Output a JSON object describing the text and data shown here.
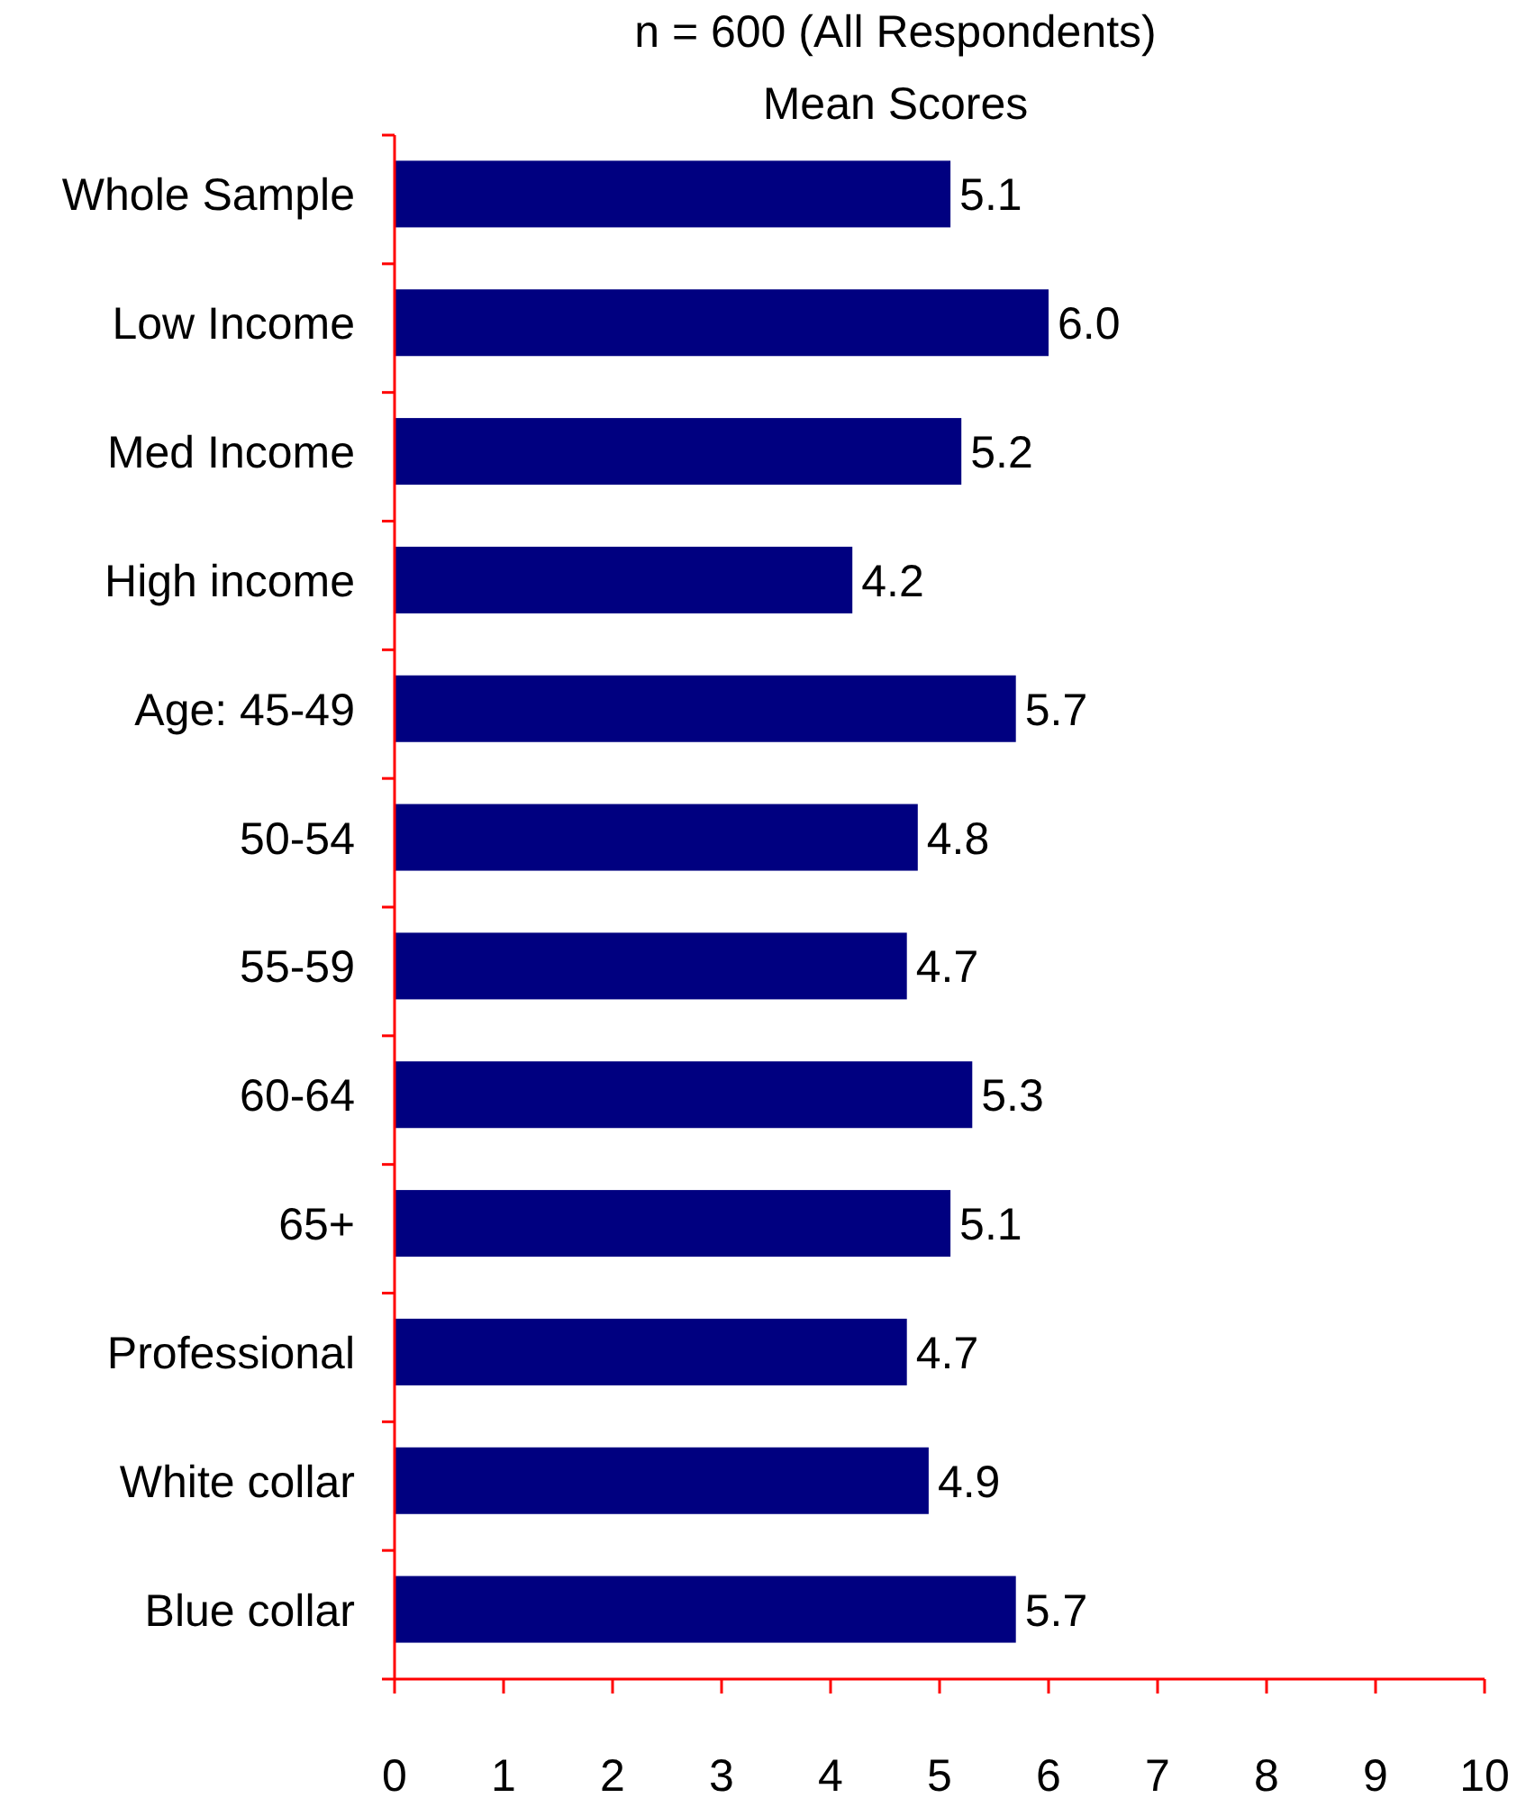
{
  "chart_data": {
    "type": "bar",
    "orientation": "horizontal",
    "title": "n = 600 (All Respondents)",
    "subtitle": "Mean Scores",
    "categories": [
      "Whole Sample",
      "Low Income",
      "Med Income",
      "High income",
      "Age: 45-49",
      "50-54",
      "55-59",
      "60-64",
      "65+",
      "Professional",
      "White collar",
      "Blue collar"
    ],
    "values": [
      5.1,
      6.0,
      5.2,
      4.2,
      5.7,
      4.8,
      4.7,
      5.3,
      5.1,
      4.7,
      4.9,
      5.7
    ],
    "value_labels": [
      "5.1",
      "6.0",
      "5.2",
      "4.2",
      "5.7",
      "4.8",
      "4.7",
      "5.3",
      "5.1",
      "4.7",
      "4.9",
      "5.7"
    ],
    "color": "#000080",
    "xlim": [
      0,
      10
    ],
    "xticks": [
      0,
      1,
      2,
      3,
      4,
      5,
      6,
      7,
      8,
      9,
      10
    ],
    "grid": false
  }
}
